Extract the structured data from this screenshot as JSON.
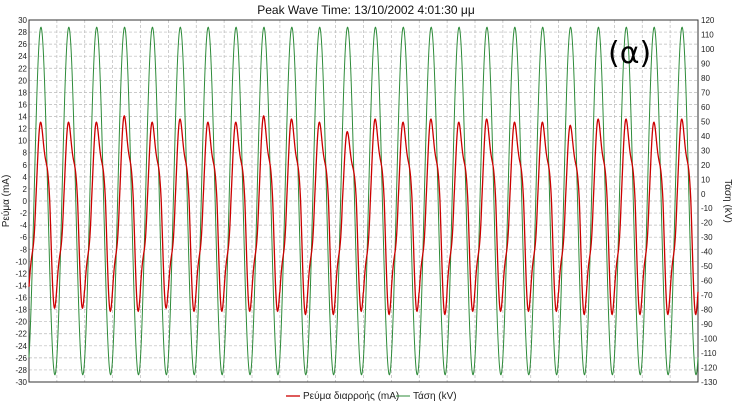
{
  "chart_data": {
    "type": "line",
    "title": "Peak Wave Time: 13/10/2002 4:01:30 μμ",
    "panel_label": "(α)",
    "ylabel_left": "Ρεύμα (mA)",
    "ylabel_right": "Τάση (kV)",
    "ylim_left": [
      -30,
      30
    ],
    "ylim_right": [
      -130,
      120
    ],
    "yticks_left": [
      30,
      28,
      26,
      24,
      22,
      20,
      18,
      16,
      14,
      12,
      10,
      8,
      6,
      4,
      2,
      0,
      -2,
      -4,
      -6,
      -8,
      -10,
      -12,
      -14,
      -16,
      -18,
      -20,
      -22,
      -24,
      -26,
      -28,
      -30
    ],
    "yticks_right": [
      120,
      110,
      100,
      90,
      80,
      70,
      60,
      50,
      40,
      30,
      20,
      10,
      0,
      -10,
      -20,
      -30,
      -40,
      -50,
      -60,
      -70,
      -80,
      -90,
      -100,
      -110,
      -120,
      -130
    ],
    "grid": true,
    "legend_position": "bottom-center",
    "cycles": 24,
    "series": [
      {
        "name": "Ρεύμα διαρροής (mA)",
        "axis": "left",
        "color": "#cc0000",
        "peaks": [
          12.5,
          12.5,
          12.5,
          13.5,
          12.5,
          13,
          12.5,
          12.5,
          13.5,
          13,
          12.5,
          11,
          13,
          12.5,
          13,
          12.5,
          13,
          12.5,
          12.5,
          12,
          13,
          13,
          12.5,
          13
        ],
        "troughs": [
          -17,
          -17,
          -17.5,
          -17.5,
          -17,
          -17.5,
          -17.5,
          -17.5,
          -17.5,
          -18,
          -18,
          -17.5,
          -18,
          -17.5,
          -18,
          -17.5,
          -17.5,
          -17.5,
          -17.5,
          -18,
          -18,
          -18,
          -18,
          -18
        ]
      },
      {
        "name": "Τάση (kV)",
        "axis": "right",
        "color": "#2e8b3a",
        "amplitude": 120
      }
    ]
  }
}
